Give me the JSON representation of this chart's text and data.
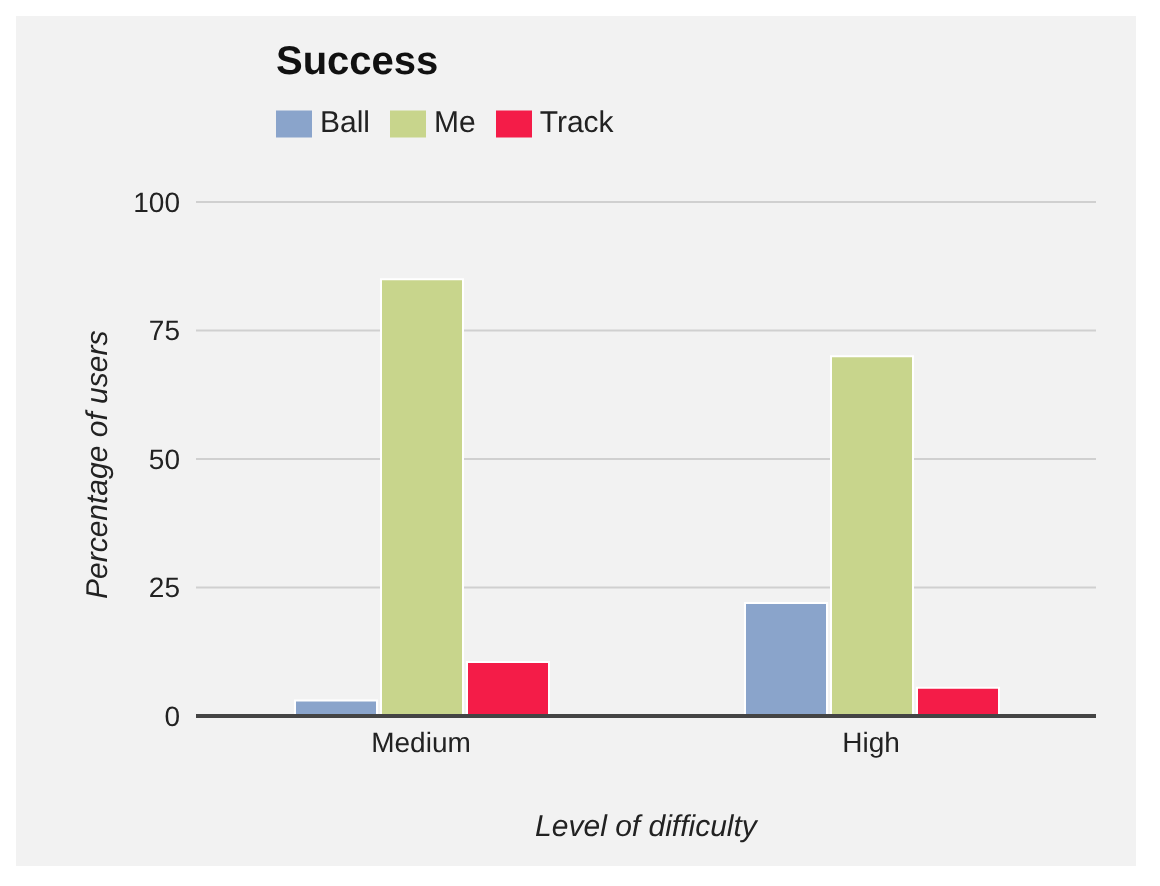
{
  "chart_data": {
    "type": "bar",
    "title": "Success",
    "xlabel": "Level of difficulty",
    "ylabel": "Percentage of users",
    "categories": [
      "Medium",
      "High"
    ],
    "series": [
      {
        "name": "Ball",
        "color": "#8aa4cb",
        "values": [
          3,
          22
        ]
      },
      {
        "name": "Me",
        "color": "#c8d58c",
        "values": [
          85,
          70
        ]
      },
      {
        "name": "Track",
        "color": "#f41c48",
        "values": [
          10.5,
          5.5
        ]
      }
    ],
    "ylim": [
      0,
      100
    ],
    "yticks": [
      0,
      25,
      50,
      75,
      100
    ],
    "grid": "y",
    "legend": "top left"
  }
}
